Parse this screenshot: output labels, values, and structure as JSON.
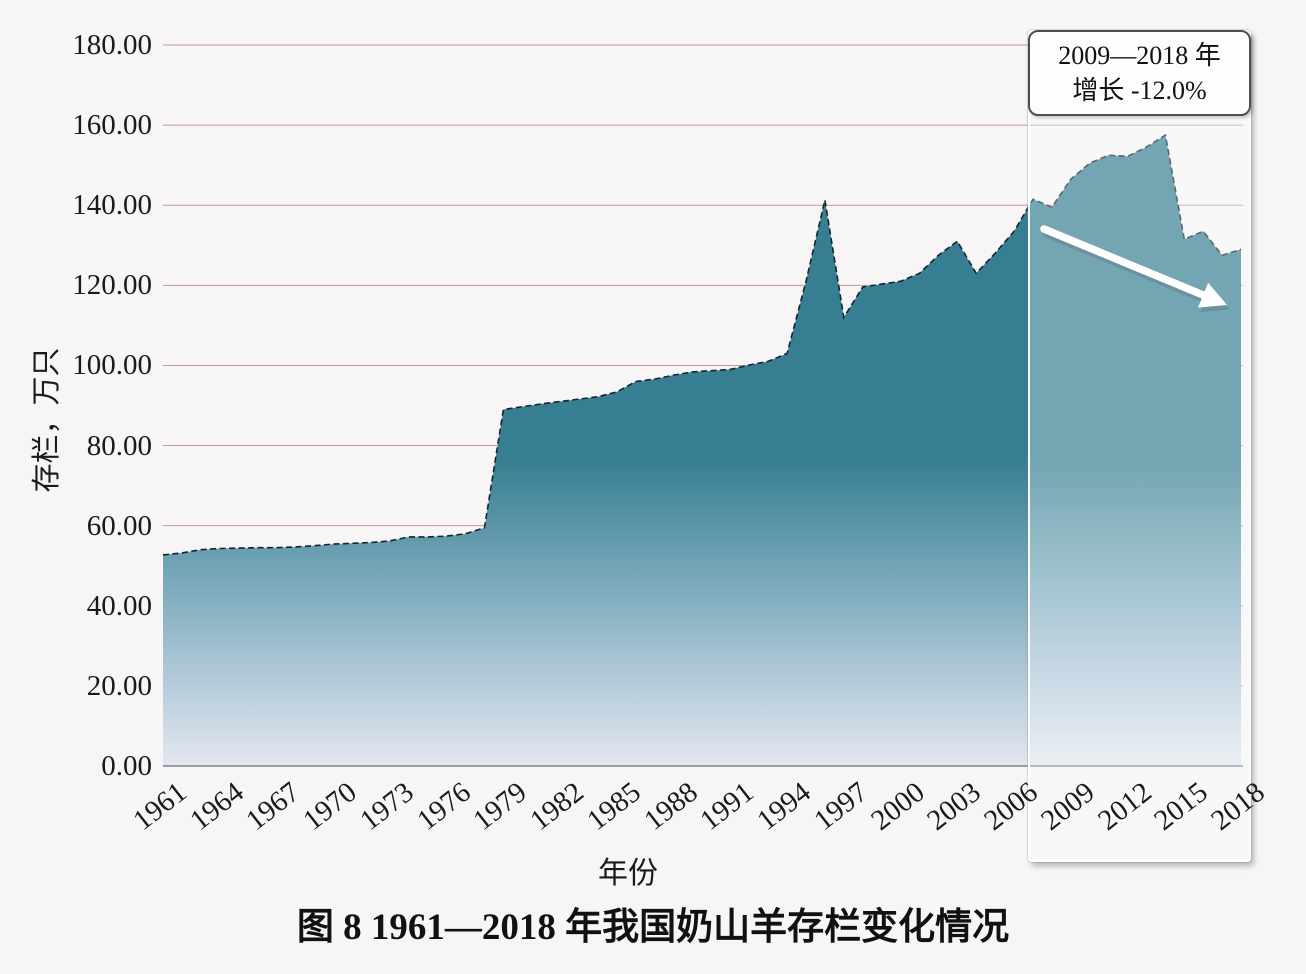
{
  "figure": {
    "caption": "图 8  1961—2018 年我国奶山羊存栏变化情况"
  },
  "chart_data": {
    "type": "area",
    "title": "图 8  1961—2018 年我国奶山羊存栏变化情况",
    "xlabel": "年份",
    "ylabel": "存栏，万只",
    "ylim": [
      0,
      180
    ],
    "y_tick_step": 20,
    "y_tick_labels": [
      "0.00",
      "20.00",
      "40.00",
      "60.00",
      "80.00",
      "100.00",
      "120.00",
      "140.00",
      "160.00",
      "180.00"
    ],
    "x_range": [
      1961,
      2018
    ],
    "x_tick_labels": [
      "1961",
      "1964",
      "1967",
      "1970",
      "1973",
      "1976",
      "1979",
      "1982",
      "1985",
      "1988",
      "1991",
      "1994",
      "1997",
      "2000",
      "2003",
      "2006",
      "2009",
      "2012",
      "2015",
      "2018"
    ],
    "grid": "horizontal",
    "legend": "none",
    "series": [
      {
        "name": "存栏",
        "x_start": 1961,
        "values": [
          52.7,
          53.2,
          54.0,
          54.3,
          54.4,
          54.5,
          54.5,
          54.7,
          55.0,
          55.4,
          55.6,
          55.8,
          56.2,
          57.2,
          57.2,
          57.4,
          58.0,
          59.5,
          89.0,
          89.7,
          90.4,
          91.0,
          91.6,
          92.2,
          93.4,
          96.0,
          96.6,
          97.6,
          98.4,
          98.7,
          99.0,
          100.1,
          101.0,
          103.0,
          121.0,
          141.3,
          112.0,
          119.6,
          120.3,
          121.0,
          123.0,
          127.5,
          131.0,
          123.0,
          128.0,
          133.5,
          141.5,
          139.5,
          146.5,
          150.5,
          152.5,
          152.2,
          154.5,
          157.5,
          131.5,
          133.5,
          127.5,
          129.0
        ]
      }
    ],
    "annotation": {
      "line1": "2009—2018 年",
      "line2": "增长 -12.0%",
      "highlight_range": [
        2009,
        2018
      ],
      "arrow_direction": "down-right"
    },
    "colors": {
      "area_top": "#377E92",
      "area_fade_mid": "#71A4B6",
      "area_bottom": "#E3E8F1",
      "area_edge_line": "#16242E",
      "gridline": "#BD9186",
      "axis_line": "#808080",
      "background": "#F7F5F6",
      "arrow": "#FFFFFF"
    }
  }
}
